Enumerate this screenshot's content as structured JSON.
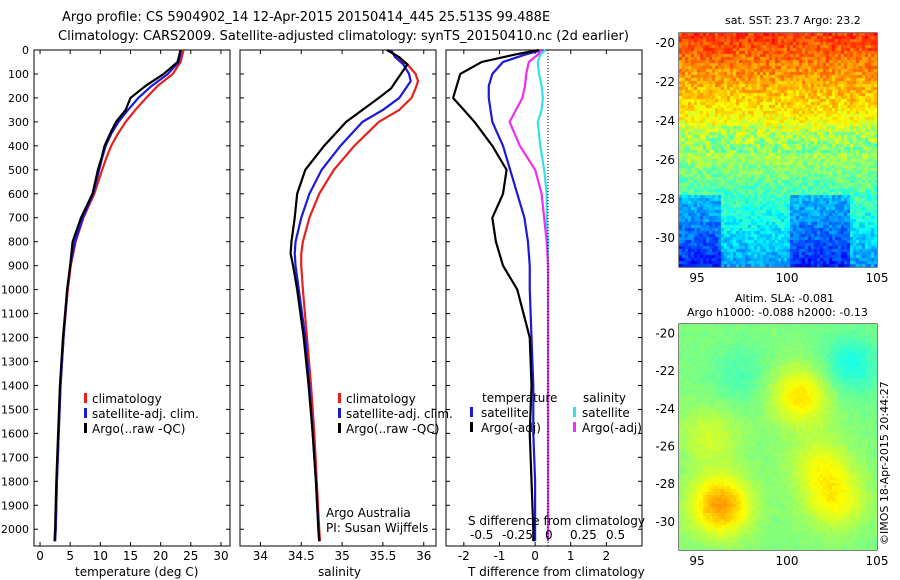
{
  "header": {
    "line1": "Argo profile: CS 5904902_14 12-Apr-2015 20150414_445 25.513S 99.488E",
    "line2": "Climatology: CARS2009. Satellite-adjusted climatology: synTS_20150410.nc (2d earlier)"
  },
  "colors": {
    "climatology": "#e8201c",
    "satellite": "#1a1adc",
    "argo": "#000000",
    "sal_satellite": "#33e0e8",
    "sal_argo": "#f02ef0"
  },
  "panel1": {
    "xlabel": "temperature (deg C)",
    "legend": [
      "climatology",
      "satellite-adj. clim.",
      "Argo(..raw -QC)"
    ]
  },
  "panel2": {
    "xlabel": "salinity",
    "legend": [
      "climatology",
      "satellite-adj. clim.",
      "Argo(..raw -QC)"
    ],
    "note1": "Argo Australia",
    "note2": "PI: Susan Wijffels"
  },
  "panel3": {
    "xlabel": "T difference from climatology",
    "top_label": "S difference from climatology",
    "top_ticks": [
      "-0.5",
      "-0.25",
      "0",
      "0.25",
      "0.5"
    ],
    "leg_temp_title": "temperature",
    "leg_sal_title": "salinity",
    "leg_temp": [
      "satellite",
      "Argo(-adj)"
    ],
    "leg_sal": [
      "satellite",
      "Argo(-adj)"
    ]
  },
  "map1": {
    "title": "sat. SST: 23.7  Argo: 23.2"
  },
  "map2": {
    "title1": "Altim. SLA: -0.081",
    "title2": "Argo h1000: -0.088 h2000: -0.13"
  },
  "credit": "©IMOS 18-Apr-2015 20:44:27",
  "chart_data": [
    {
      "type": "line",
      "name": "temperature profile",
      "xlabel": "temperature (deg C)",
      "ylabel": "",
      "xlim": [
        -1,
        31.5
      ],
      "ylim": [
        2070,
        0
      ],
      "xticks": [
        0,
        5,
        10,
        15,
        20,
        25,
        30
      ],
      "yticks": [
        0,
        100,
        200,
        300,
        400,
        500,
        600,
        700,
        800,
        900,
        1000,
        1100,
        1200,
        1300,
        1400,
        1500,
        1600,
        1700,
        1800,
        1900,
        2000
      ],
      "depth": [
        0,
        50,
        100,
        150,
        200,
        250,
        300,
        350,
        400,
        450,
        500,
        600,
        700,
        800,
        900,
        1000,
        1200,
        1400,
        1600,
        1800,
        2000,
        2050
      ],
      "series": [
        {
          "name": "climatology",
          "values": [
            23.8,
            23.3,
            22.0,
            19.5,
            17.6,
            15.8,
            14.2,
            12.9,
            11.8,
            11.0,
            10.3,
            9.0,
            7.2,
            5.9,
            5.1,
            4.6,
            3.9,
            3.4,
            3.1,
            2.8,
            2.6,
            2.5
          ]
        },
        {
          "name": "satellite-adj. clim.",
          "values": [
            23.4,
            23.0,
            21.2,
            18.5,
            16.3,
            14.6,
            13.0,
            11.8,
            10.9,
            10.3,
            9.8,
            8.8,
            7.1,
            5.8,
            5.0,
            4.5,
            3.9,
            3.4,
            3.1,
            2.8,
            2.6,
            2.5
          ]
        },
        {
          "name": "Argo(..raw -QC)",
          "values": [
            23.3,
            22.8,
            20.5,
            17.5,
            15.0,
            14.2,
            12.6,
            11.6,
            10.7,
            10.2,
            9.6,
            8.7,
            6.8,
            5.4,
            5.0,
            4.5,
            3.8,
            3.3,
            3.0,
            2.7,
            2.5,
            2.4
          ]
        }
      ]
    },
    {
      "type": "line",
      "name": "salinity profile",
      "xlabel": "salinity",
      "xlim": [
        33.75,
        36.15
      ],
      "ylim": [
        2070,
        0
      ],
      "xticks": [
        34,
        34.5,
        35,
        35.5,
        36
      ],
      "depth": [
        0,
        30,
        60,
        100,
        130,
        160,
        200,
        250,
        300,
        400,
        500,
        600,
        700,
        800,
        850,
        900,
        1000,
        1200,
        1400,
        1600,
        1800,
        2000,
        2050
      ],
      "series": [
        {
          "name": "climatology",
          "values": [
            35.6,
            35.65,
            35.8,
            35.9,
            35.93,
            35.9,
            35.85,
            35.7,
            35.45,
            35.15,
            34.9,
            34.72,
            34.6,
            34.52,
            34.5,
            34.5,
            34.52,
            34.57,
            34.62,
            34.66,
            34.69,
            34.72,
            34.73
          ]
        },
        {
          "name": "satellite-adj. clim.",
          "values": [
            35.6,
            35.65,
            35.75,
            35.82,
            35.84,
            35.78,
            35.7,
            35.5,
            35.25,
            34.98,
            34.75,
            34.6,
            34.5,
            34.43,
            34.42,
            34.43,
            34.47,
            34.55,
            34.6,
            34.64,
            34.68,
            34.71,
            34.72
          ]
        },
        {
          "name": "Argo(..raw -QC)",
          "values": [
            35.55,
            35.7,
            35.8,
            35.72,
            35.66,
            35.6,
            35.45,
            35.25,
            35.05,
            34.78,
            34.55,
            34.45,
            34.42,
            34.38,
            34.37,
            34.4,
            34.45,
            34.53,
            34.59,
            34.64,
            34.68,
            34.71,
            34.72
          ]
        }
      ]
    },
    {
      "type": "line",
      "name": "difference profile",
      "xlabel": "T difference from climatology",
      "top_label": "S difference from climatology",
      "xlim": [
        -2.5,
        3.0
      ],
      "ylim": [
        2070,
        0
      ],
      "xticks": [
        -2,
        -1,
        0,
        1,
        2
      ],
      "top_ticks": [
        -0.5,
        -0.25,
        0,
        0.25,
        0.5
      ],
      "depth": [
        0,
        20,
        50,
        100,
        150,
        200,
        250,
        300,
        400,
        500,
        600,
        700,
        800,
        900,
        1000,
        1200,
        1400,
        1600,
        1800,
        2000,
        2050
      ],
      "series": [
        {
          "name": "temperature satellite",
          "values": [
            0.2,
            -0.3,
            -0.9,
            -1.2,
            -1.3,
            -1.3,
            -1.25,
            -1.2,
            -0.9,
            -0.7,
            -0.5,
            -0.3,
            -0.2,
            -0.15,
            -0.15,
            -0.1,
            -0.05,
            -0.05,
            0.0,
            0.0,
            0.0
          ]
        },
        {
          "name": "temperature Argo(-adj)",
          "values": [
            0.1,
            -0.6,
            -1.5,
            -2.1,
            -2.2,
            -2.3,
            -2.0,
            -1.7,
            -1.2,
            -0.8,
            -0.9,
            -1.2,
            -1.1,
            -0.9,
            -0.5,
            -0.15,
            -0.1,
            -0.15,
            -0.1,
            -0.05,
            -0.05
          ]
        },
        {
          "name": "salinity satellite",
          "values": [
            -0.02,
            -0.06,
            -0.08,
            -0.07,
            -0.05,
            -0.04,
            -0.05,
            -0.08,
            -0.06,
            -0.03,
            -0.01,
            -0.01,
            0.0,
            0.0,
            0.0,
            0.0,
            0.0,
            0.0,
            0.0,
            0.0,
            0.0
          ]
        },
        {
          "name": "salinity Argo(-adj)",
          "values": [
            -0.05,
            -0.08,
            -0.15,
            -0.17,
            -0.18,
            -0.2,
            -0.25,
            -0.3,
            -0.22,
            -0.1,
            -0.05,
            -0.03,
            -0.01,
            0.0,
            0.0,
            0.0,
            0.0,
            0.0,
            0.0,
            0.0,
            0.0
          ]
        }
      ]
    },
    {
      "type": "heatmap",
      "name": "SST map",
      "title": "sat. SST: 23.7  Argo: 23.2",
      "xlim": [
        94,
        105
      ],
      "ylim": [
        -31.5,
        -19.5
      ],
      "xticks": [
        95,
        100,
        105
      ],
      "yticks": [
        -20,
        -22,
        -24,
        -26,
        -28,
        -30
      ]
    },
    {
      "type": "heatmap",
      "name": "SLA map",
      "title": "Altim. SLA: -0.081",
      "xlim": [
        94,
        105
      ],
      "ylim": [
        -31.5,
        -19.5
      ],
      "xticks": [
        95,
        100,
        105
      ],
      "yticks": [
        -20,
        -22,
        -24,
        -26,
        -28,
        -30
      ]
    }
  ]
}
